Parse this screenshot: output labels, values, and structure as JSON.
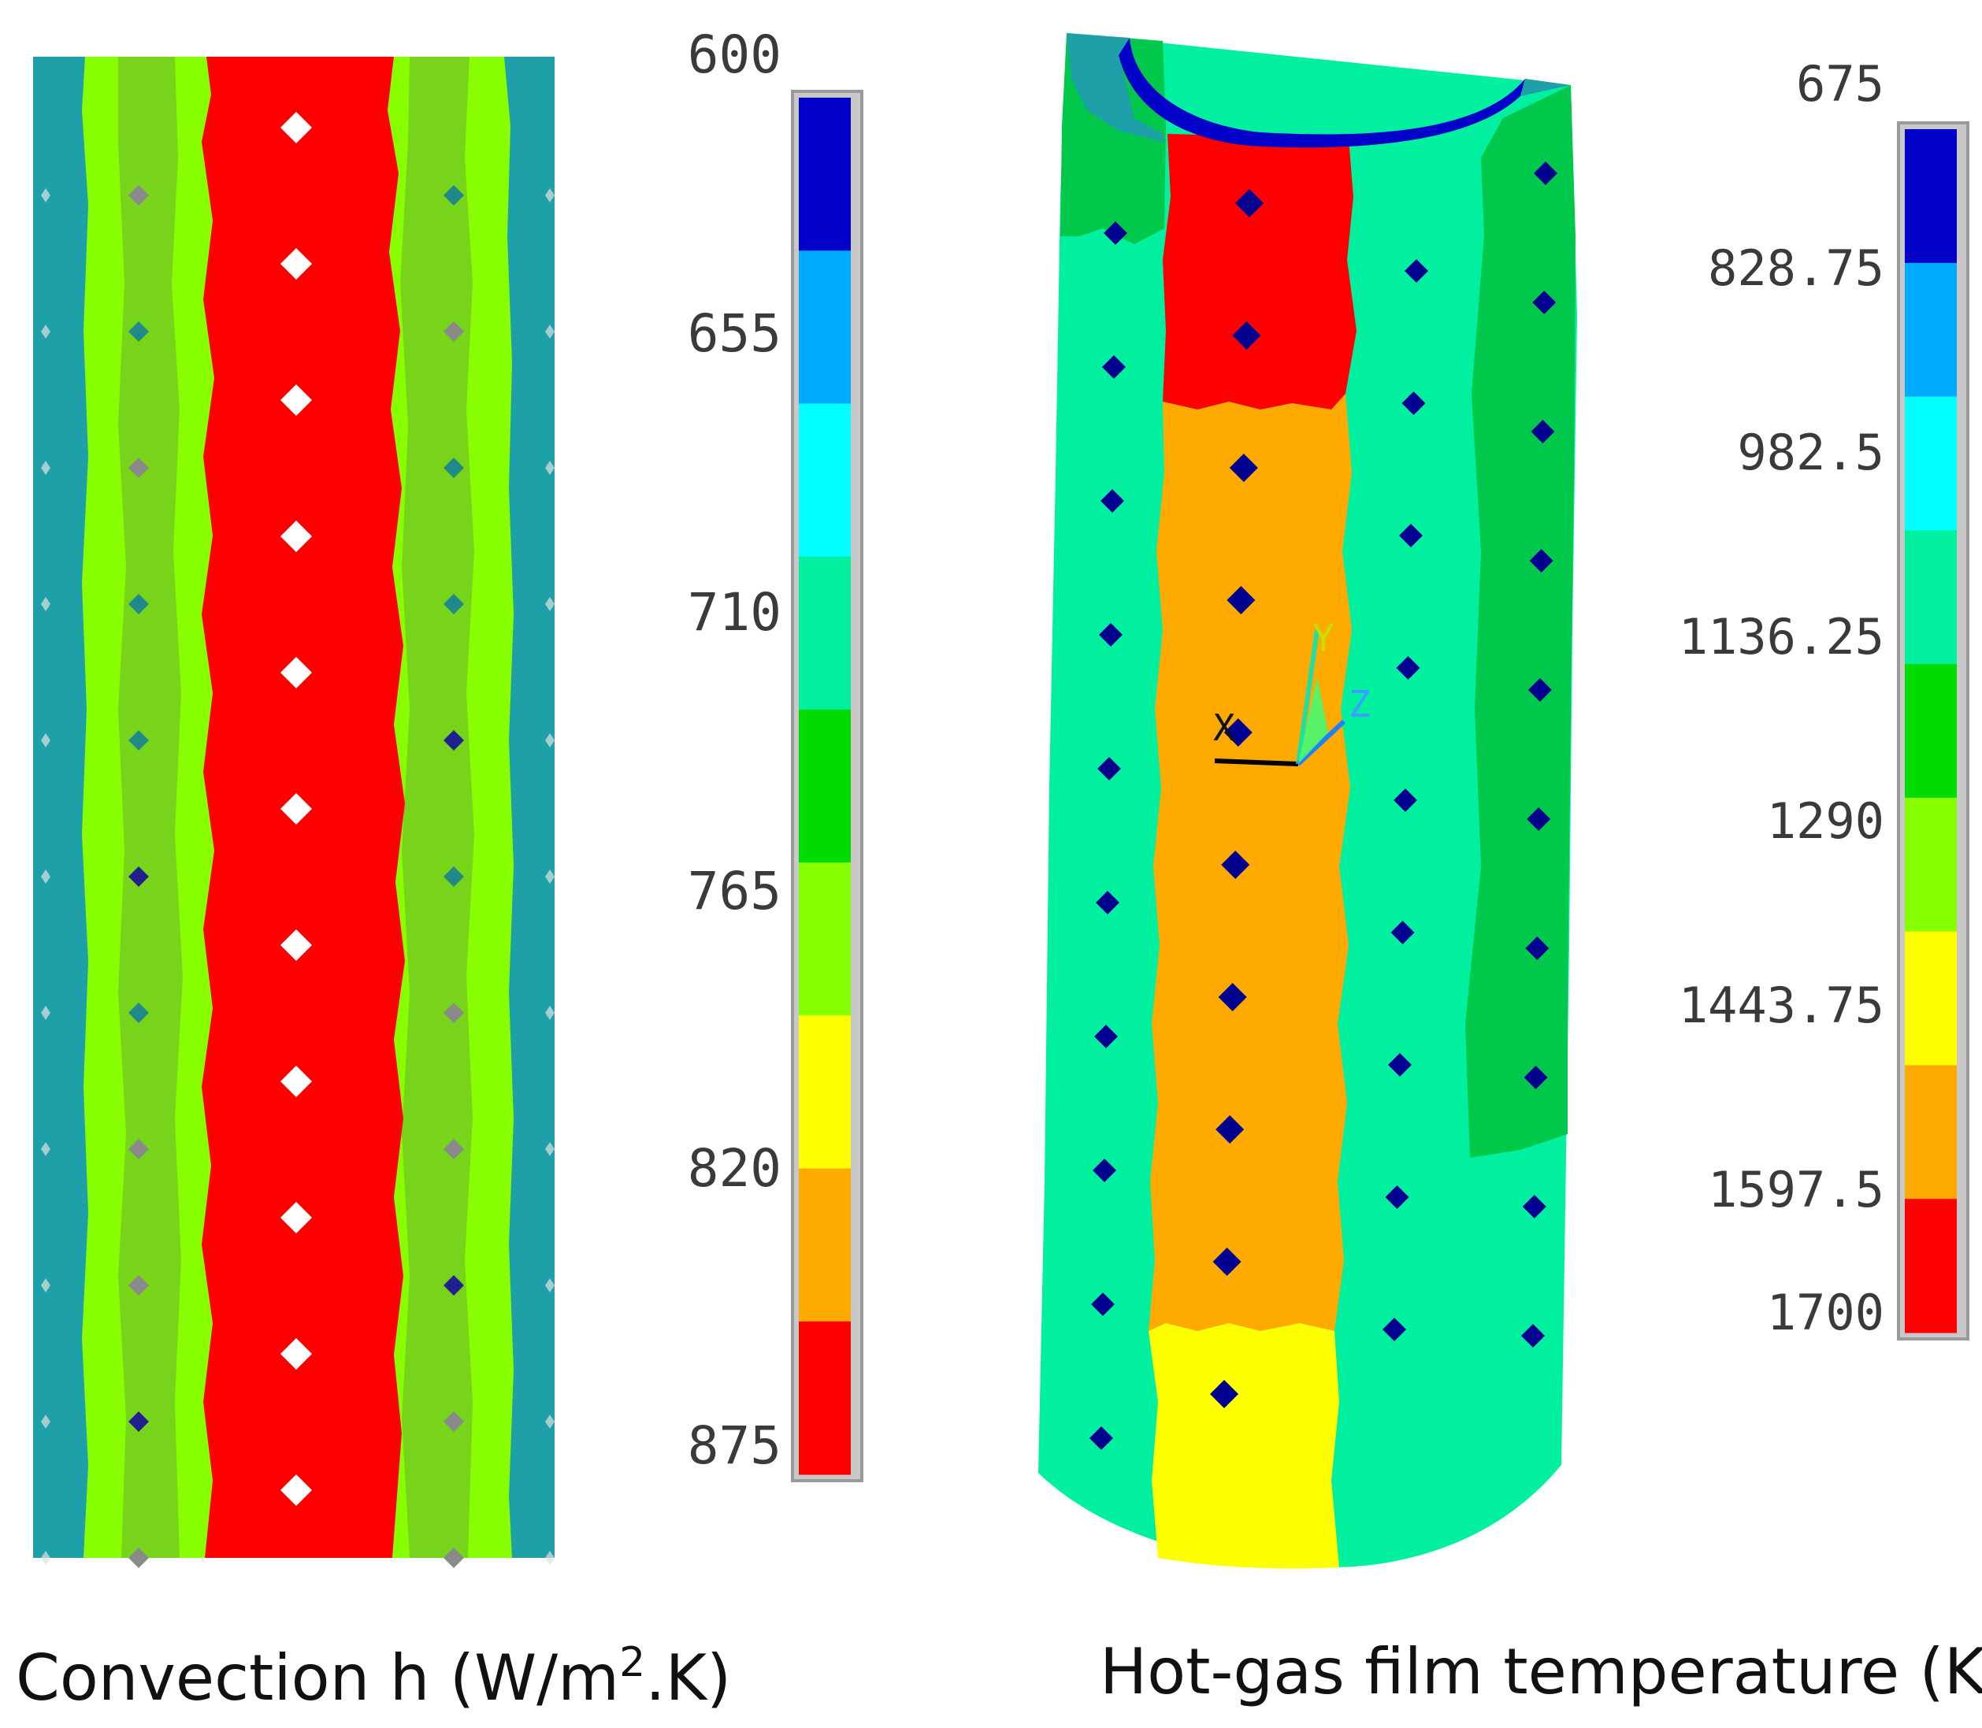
{
  "panels": [
    {
      "id": "convection",
      "caption": {
        "prefix": "Convection h (W/m",
        "superscript": "2",
        "suffix": ".K)"
      },
      "scale": {
        "ticks": [
          "600",
          "655",
          "710",
          "765",
          "820",
          "875"
        ],
        "colors": [
          "#0000c8",
          "#00aaff",
          "#00ffff",
          "#00f0a0",
          "#00dc00",
          "#88ff00",
          "#ffff00",
          "#ffaa00",
          "#ff0000"
        ]
      }
    },
    {
      "id": "film-temperature",
      "caption": {
        "text": "Hot-gas film temperature (K)"
      },
      "scale": {
        "ticks": [
          "675",
          "828.75",
          "982.5",
          "1136.25",
          "1290",
          "1443.75",
          "1597.5",
          "1700"
        ],
        "colors": [
          "#0000c8",
          "#00aaff",
          "#00ffff",
          "#00f0a0",
          "#00dc00",
          "#88ff00",
          "#ffff00",
          "#ffaa00",
          "#ff0000"
        ]
      }
    }
  ],
  "axis_triad": {
    "labels": [
      "Y",
      "Z",
      "X"
    ]
  },
  "palette": {
    "teal": "#1ea0a8",
    "green": "#88ff00",
    "red": "#ff0000",
    "orange": "#ffaa00",
    "yellow": "#ffff00",
    "aquagreen": "#00f0a0",
    "darkgreen": "#00dc00",
    "blue": "#0000c8",
    "hole_light": "#ffffff",
    "hole_dark": "#000090"
  }
}
